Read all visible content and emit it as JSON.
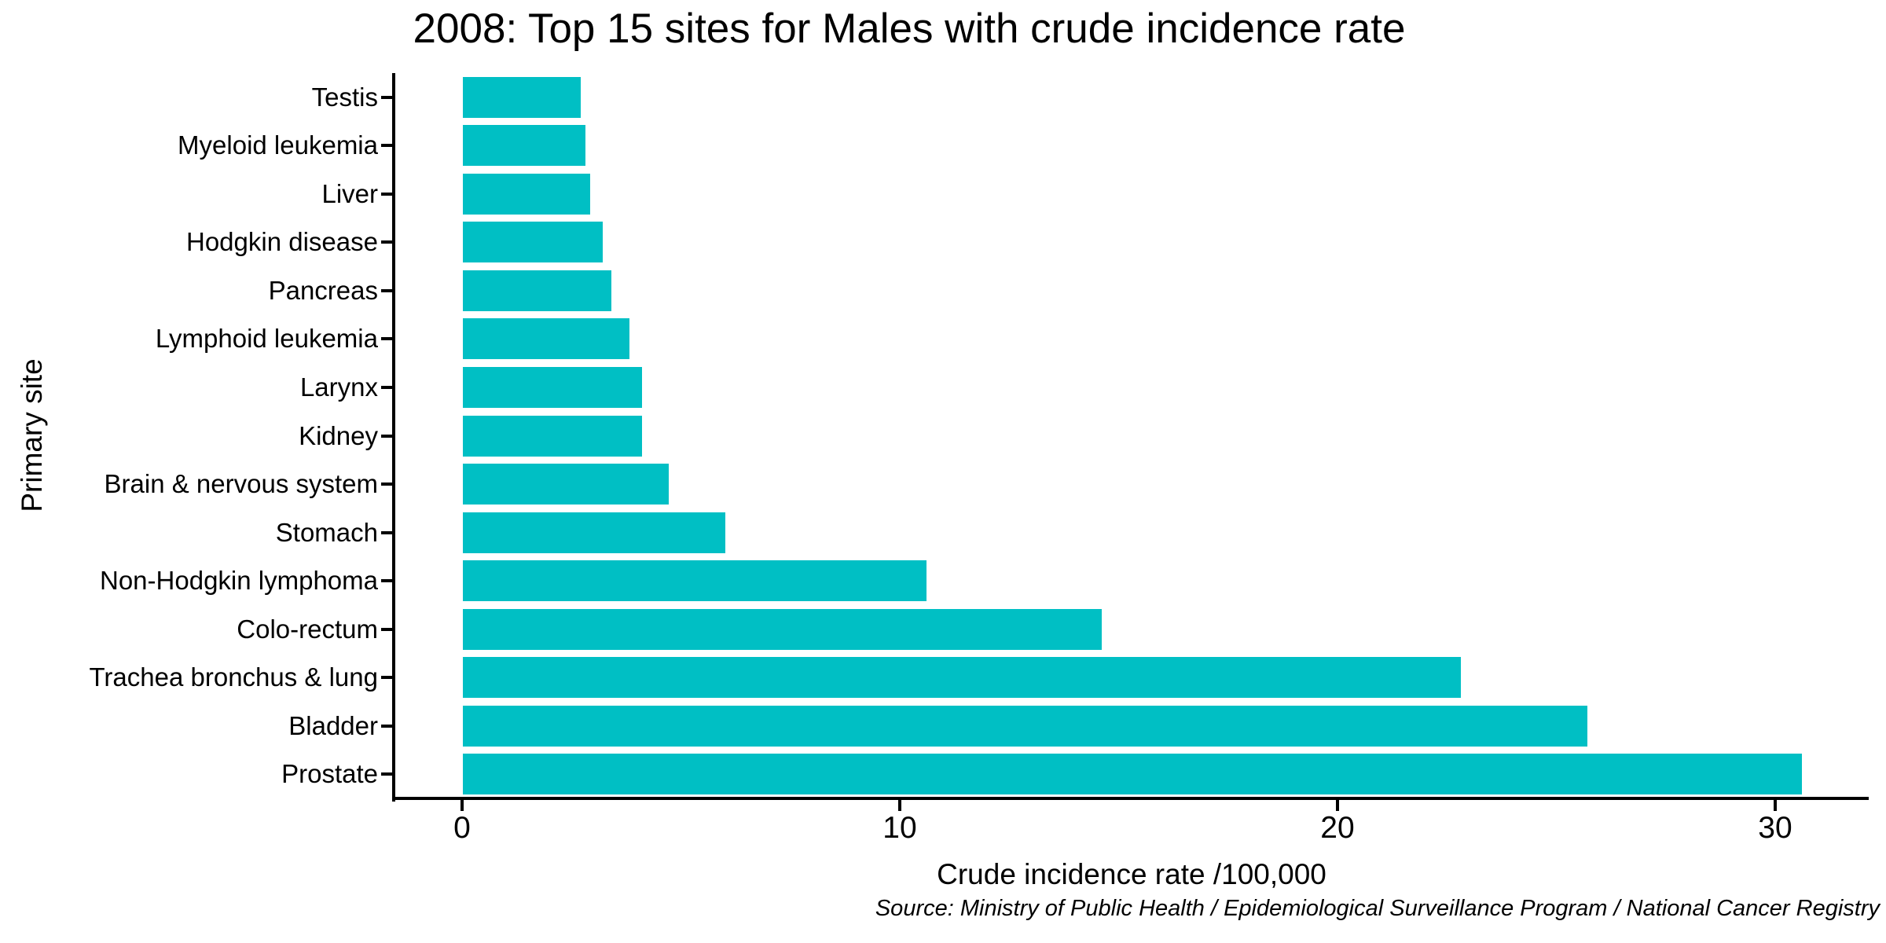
{
  "title": "2008: Top 15 sites for Males with crude incidence rate",
  "source_note": "Source: Ministry of Public Health / Epidemiological Surveillance Program / National Cancer Registry",
  "chart_data": {
    "type": "bar",
    "orientation": "horizontal",
    "title": "2008: Top 15 sites for Males with crude incidence rate",
    "xlabel": "Crude incidence rate /100,000",
    "ylabel": "Primary site",
    "categories_top_to_bottom": [
      "Testis",
      "Myeloid leukemia",
      "Liver",
      "Hodgkin disease",
      "Pancreas",
      "Lymphoid leukemia",
      "Larynx",
      "Kidney",
      "Brain & nervous system",
      "Stomach",
      "Non-Hodgkin lymphoma",
      "Colo-rectum",
      "Trachea bronchus & lung",
      "Bladder",
      "Prostate"
    ],
    "values": [
      2.7,
      2.8,
      2.9,
      3.2,
      3.4,
      3.8,
      4.1,
      4.1,
      4.7,
      6.0,
      10.6,
      14.6,
      22.8,
      25.7,
      30.6
    ],
    "x_ticks": [
      0,
      10,
      20,
      30
    ],
    "xlim": [
      -1.5,
      32.2
    ],
    "grid": false,
    "legend": false,
    "bar_color": "#00BFC4",
    "axis_color": "#000000",
    "text_color": "#000000",
    "source": "Source: Ministry of Public Health / Epidemiological Surveillance Program / National Cancer Registry"
  }
}
